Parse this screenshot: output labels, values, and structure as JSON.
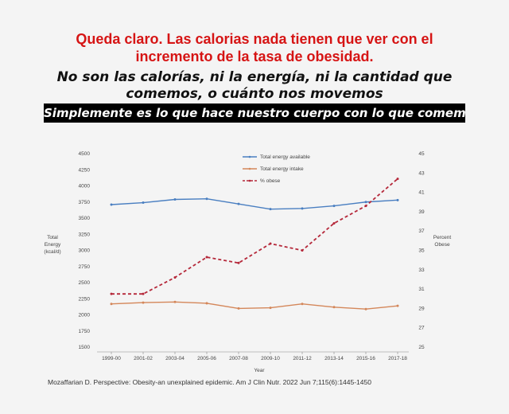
{
  "headline": {
    "line1": "Queda claro. Las calorias nada tienen que ver con el",
    "line2": "incremento de la tasa de obesidad."
  },
  "subline": {
    "line1": "No son las calorías, ni la energía, ni la cantidad que",
    "line2": "comemos, o cuánto nos movemos"
  },
  "banner": "Simplemente es lo que hace nuestro cuerpo con lo que comemos",
  "citation": "Mozaffarian D. Perspective: Obesity-an unexplained epidemic. Am J Clin Nutr. 2022 Jun 7;115(6):1445-1450",
  "colors": {
    "headline": "#d61414",
    "energy_available": "#4a7fc1",
    "energy_intake": "#d4875a",
    "obese": "#b5283a"
  },
  "chart_data": {
    "type": "line",
    "xlabel": "Year",
    "ylabel_left": [
      "Total",
      "Energy",
      "(kcal/d)"
    ],
    "ylabel_right": [
      "Percent",
      "Obese"
    ],
    "categories": [
      "1999-00",
      "2001-02",
      "2003-04",
      "2005-06",
      "2007-08",
      "2009-10",
      "2011-12",
      "2013-14",
      "2015-16",
      "2017-18"
    ],
    "y_left_ticks": [
      1500,
      1750,
      2000,
      2250,
      2500,
      2750,
      3000,
      3250,
      3500,
      3750,
      4000,
      4250,
      4500
    ],
    "y_left_lim": [
      1500,
      4500
    ],
    "y_right_ticks": [
      25,
      27,
      29,
      31,
      33,
      35,
      37,
      39,
      41,
      43,
      45
    ],
    "y_right_lim": [
      25,
      45
    ],
    "legend_position": "top-center",
    "grid": false,
    "series": [
      {
        "name": "Total energy available",
        "axis": "left",
        "style": "solid",
        "values": [
          3710,
          3740,
          3790,
          3800,
          3720,
          3640,
          3650,
          3690,
          3750,
          3780
        ]
      },
      {
        "name": "Total energy intake",
        "axis": "left",
        "style": "solid",
        "values": [
          2170,
          2190,
          2200,
          2180,
          2100,
          2110,
          2170,
          2120,
          2090,
          2140
        ]
      },
      {
        "name": "% obese",
        "axis": "right",
        "style": "dashed",
        "values": [
          30.5,
          30.5,
          32.2,
          34.3,
          33.7,
          35.7,
          35.0,
          37.8,
          39.6,
          42.4
        ]
      }
    ]
  }
}
